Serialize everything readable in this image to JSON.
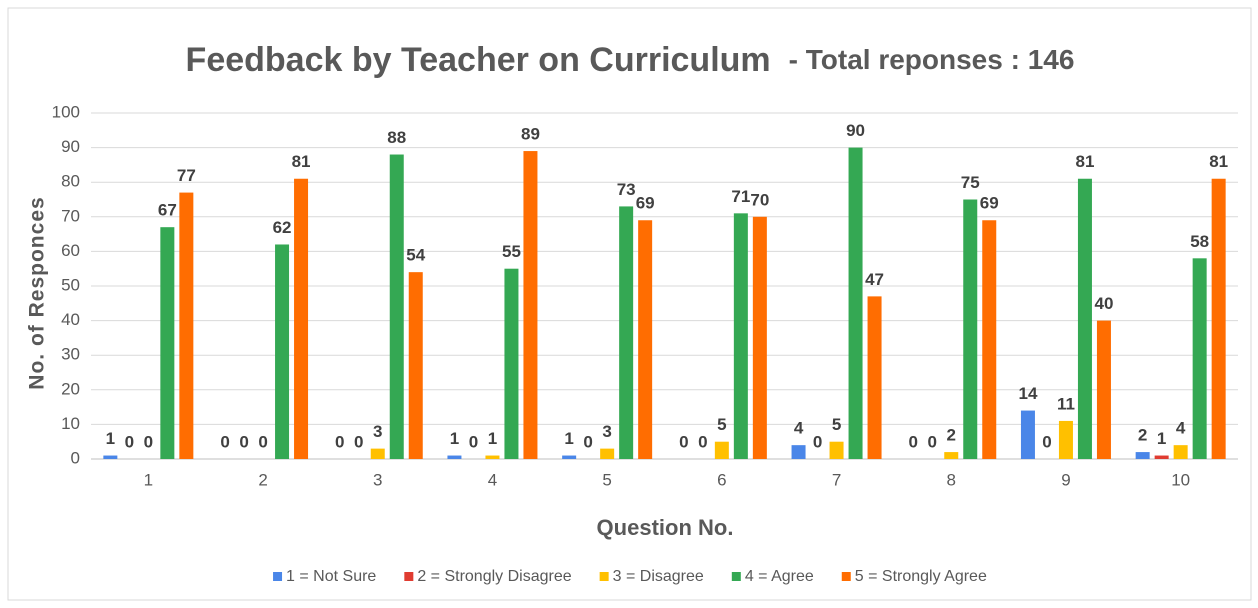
{
  "chart_data": {
    "type": "bar",
    "title": "Feedback by Teacher on Curriculum",
    "subtitle": "- Total reponses : 146",
    "x_label": "Question No.",
    "y_label": "No. of Responces",
    "categories": [
      "1",
      "2",
      "3",
      "4",
      "5",
      "6",
      "7",
      "8",
      "9",
      "10"
    ],
    "series": [
      {
        "name": "1 = Not Sure",
        "color": "#4a86e8",
        "values": [
          1,
          0,
          0,
          1,
          1,
          0,
          4,
          0,
          14,
          2
        ]
      },
      {
        "name": "2 = Strongly Disagree",
        "color": "#e03c31",
        "values": [
          0,
          0,
          0,
          0,
          0,
          0,
          0,
          0,
          0,
          1
        ]
      },
      {
        "name": "3 = Disagree",
        "color": "#ffc000",
        "values": [
          0,
          0,
          3,
          1,
          3,
          5,
          5,
          2,
          11,
          4
        ]
      },
      {
        "name": "4 = Agree",
        "color": "#34a853",
        "values": [
          67,
          62,
          88,
          55,
          73,
          71,
          90,
          75,
          81,
          58
        ]
      },
      {
        "name": "5 = Strongly Agree",
        "color": "#ff6d01",
        "values": [
          77,
          81,
          54,
          89,
          69,
          70,
          47,
          69,
          40,
          81
        ]
      }
    ],
    "ylim": [
      0,
      100
    ],
    "yticks": [
      0,
      10,
      20,
      30,
      40,
      50,
      60,
      70,
      80,
      90,
      100
    ],
    "grid": true,
    "legend": "bottom"
  }
}
